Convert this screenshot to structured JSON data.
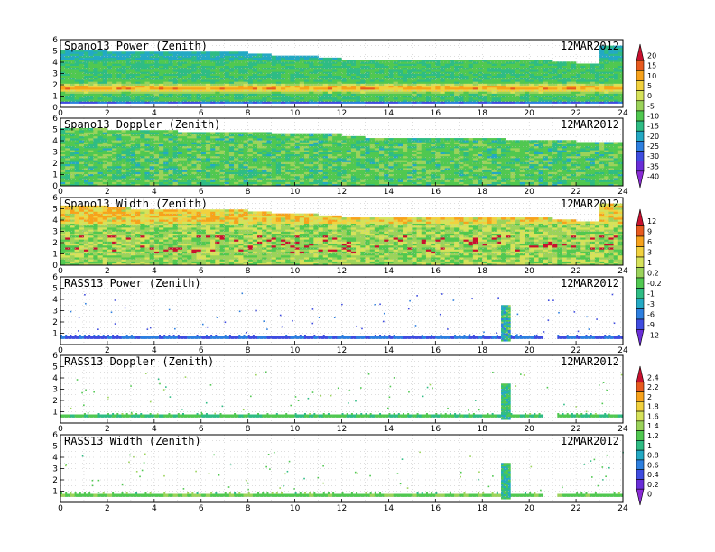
{
  "chart_data": [
    {
      "type": "heatmap",
      "title": "Spano13 Power (Zenith)",
      "date": "12MAR2012",
      "x_ticks": [
        "0",
        "2",
        "4",
        "6",
        "8",
        "10",
        "12",
        "14",
        "16",
        "18",
        "20",
        "22",
        "24"
      ],
      "y_ticks": [
        "0",
        "1",
        "2",
        "3",
        "4",
        "5",
        "6"
      ],
      "xlim": [
        0,
        24
      ],
      "ylim": [
        0,
        6
      ],
      "colorbar": "power",
      "pattern": "power",
      "top_height_km": [
        5.2,
        5.2,
        5.0,
        4.9,
        4.9,
        4.9,
        4.9,
        4.9,
        4.7,
        4.6,
        4.6,
        4.4,
        4.3,
        4.2,
        4.2,
        4.2,
        4.2,
        4.2,
        4.2,
        4.2,
        4.2,
        4.1,
        3.9,
        5.5
      ],
      "values_note_db": [
        -5,
        15
      ]
    },
    {
      "type": "heatmap",
      "title": "Spano13 Doppler (Zenith)",
      "date": "12MAR2012",
      "x_ticks": [
        "0",
        "2",
        "4",
        "6",
        "8",
        "10",
        "12",
        "14",
        "16",
        "18",
        "20",
        "22",
        "24"
      ],
      "y_ticks": [
        "0",
        "1",
        "2",
        "3",
        "4",
        "5",
        "6"
      ],
      "xlim": [
        0,
        24
      ],
      "ylim": [
        0,
        6
      ],
      "colorbar": "power",
      "pattern": "doppler",
      "top_height_km": [
        5.2,
        5.2,
        5.0,
        4.9,
        4.9,
        4.8,
        4.8,
        4.7,
        4.7,
        4.6,
        4.6,
        4.5,
        4.4,
        4.3,
        4.3,
        4.3,
        4.2,
        4.2,
        4.2,
        4.1,
        4.1,
        4.0,
        3.9,
        3.8
      ]
    },
    {
      "type": "heatmap",
      "title": "Spano13 Width (Zenith)",
      "date": "12MAR2012",
      "x_ticks": [
        "0",
        "2",
        "4",
        "6",
        "8",
        "10",
        "12",
        "14",
        "16",
        "18",
        "20",
        "22",
        "24"
      ],
      "y_ticks": [
        "0",
        "1",
        "2",
        "3",
        "4",
        "5",
        "6"
      ],
      "xlim": [
        0,
        24
      ],
      "ylim": [
        0,
        6
      ],
      "colorbar": "width",
      "pattern": "width",
      "top_height_km": [
        5.3,
        5.3,
        5.2,
        5.0,
        5.0,
        4.9,
        4.9,
        4.9,
        4.7,
        4.6,
        4.6,
        4.4,
        4.3,
        4.2,
        4.2,
        4.2,
        4.2,
        4.2,
        4.2,
        4.2,
        4.2,
        4.1,
        3.9,
        5.5
      ]
    },
    {
      "type": "scatter",
      "title": "RASS13 Power (Zenith)",
      "date": "12MAR2012",
      "x_ticks": [
        "0",
        "2",
        "4",
        "6",
        "8",
        "10",
        "12",
        "14",
        "16",
        "18",
        "20",
        "22",
        "24"
      ],
      "y_ticks": [
        "1",
        "2",
        "3",
        "4",
        "5",
        "6"
      ],
      "xlim": [
        0,
        24
      ],
      "ylim": [
        0,
        6
      ],
      "colorbar": "width",
      "pattern": "rass-power",
      "band_height_km": 0.6,
      "burst_time_h": [
        18.8,
        19.2
      ],
      "burst_height_km": [
        0.3,
        3.5
      ]
    },
    {
      "type": "scatter",
      "title": "RASS13 Doppler (Zenith)",
      "date": "12MAR2012",
      "x_ticks": [
        "0",
        "2",
        "4",
        "6",
        "8",
        "10",
        "12",
        "14",
        "16",
        "18",
        "20",
        "22",
        "24"
      ],
      "y_ticks": [
        "1",
        "2",
        "3",
        "4",
        "5",
        "6"
      ],
      "xlim": [
        0,
        24
      ],
      "ylim": [
        0,
        6
      ],
      "colorbar": "rass",
      "pattern": "rass-doppler",
      "band_height_km": 0.6,
      "burst_time_h": [
        18.8,
        19.2
      ],
      "burst_height_km": [
        0.3,
        3.5
      ]
    },
    {
      "type": "scatter",
      "title": "RASS13 Width (Zenith)",
      "date": "12MAR2012",
      "x_ticks": [
        "0",
        "2",
        "4",
        "6",
        "8",
        "10",
        "12",
        "14",
        "16",
        "18",
        "20",
        "22",
        "24"
      ],
      "y_ticks": [
        "1",
        "2",
        "3",
        "4",
        "5",
        "6"
      ],
      "xlim": [
        0,
        24
      ],
      "ylim": [
        0,
        6
      ],
      "colorbar": "rass",
      "pattern": "rass-width",
      "band_height_km": 0.6,
      "burst_time_h": [
        18.8,
        19.2
      ],
      "burst_height_km": [
        0.3,
        3.5
      ]
    }
  ],
  "colorbars": {
    "power": {
      "labels": [
        "20",
        "15",
        "10",
        "5",
        "0",
        "-5",
        "-10",
        "-15",
        "-20",
        "-25",
        "-30",
        "-35",
        "-40"
      ],
      "colors": [
        "#c8102e",
        "#e85a1e",
        "#f7a21b",
        "#f1d13e",
        "#d6e25a",
        "#9bd35a",
        "#50c850",
        "#2ebc84",
        "#23a9c4",
        "#2d7fe0",
        "#3f4ce0",
        "#6a2ed8",
        "#8a2bd6"
      ]
    },
    "width": {
      "labels": [
        "12",
        "9",
        "6",
        "3",
        "1",
        "0.2",
        "-0.2",
        "-1",
        "-3",
        "-6",
        "-9",
        "-12"
      ],
      "colors": [
        "#c8102e",
        "#e85a1e",
        "#f7a21b",
        "#f1d13e",
        "#d6e25a",
        "#9bd35a",
        "#50c850",
        "#2ebc84",
        "#23a9c4",
        "#2d7fe0",
        "#3f4ce0",
        "#6a2ed8"
      ]
    },
    "rass": {
      "labels": [
        "2.4",
        "2.2",
        "2",
        "1.8",
        "1.6",
        "1.4",
        "1.2",
        "1",
        "0.8",
        "0.6",
        "0.4",
        "0.2",
        "0"
      ],
      "colors": [
        "#c8102e",
        "#e85a1e",
        "#f7a21b",
        "#f1d13e",
        "#d6e25a",
        "#9bd35a",
        "#50c850",
        "#2ebc84",
        "#23a9c4",
        "#2d7fe0",
        "#3f4ce0",
        "#6a2ed8",
        "#8a2bd6"
      ]
    }
  }
}
